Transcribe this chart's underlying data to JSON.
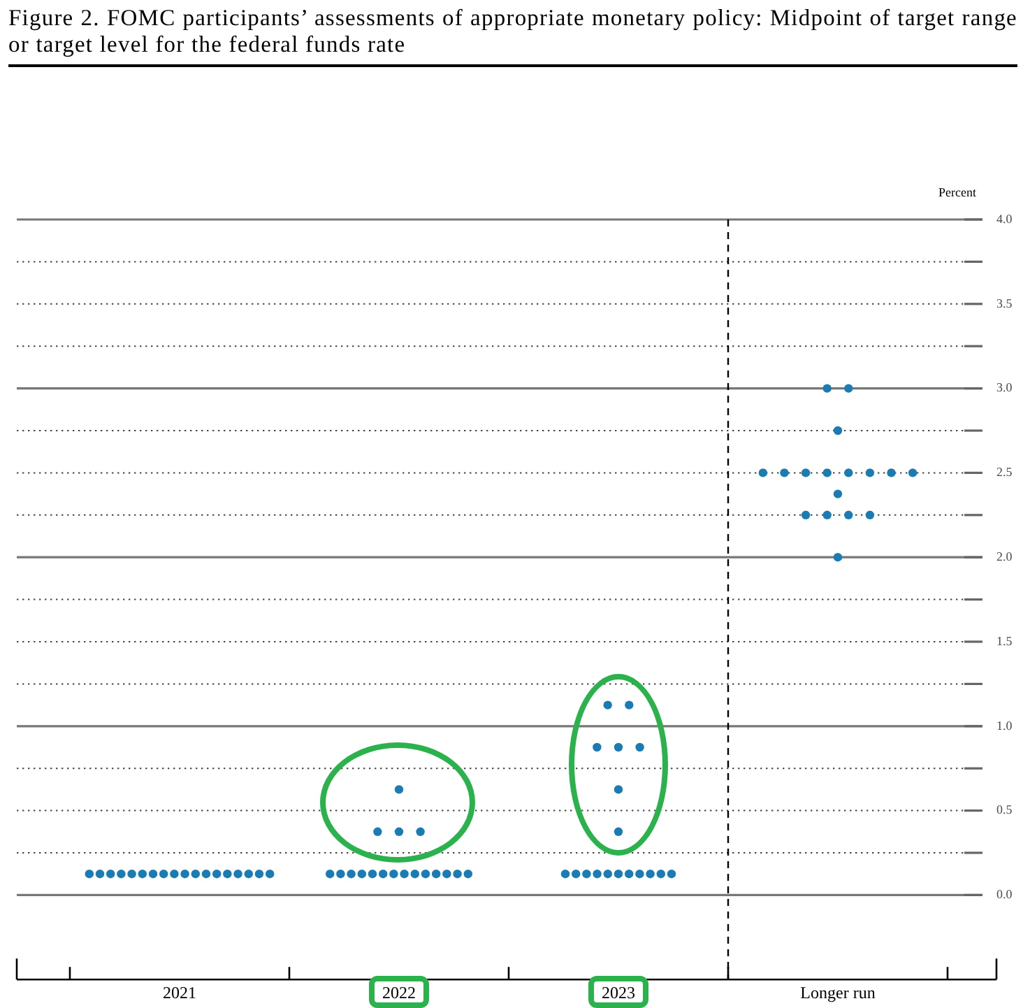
{
  "chart_data": {
    "type": "scatter",
    "title": "Figure 2. FOMC participants’ assessments of appropriate monetary policy: Midpoint of target range or target level for the federal funds rate",
    "ylabel": "Percent",
    "categories": [
      "2021",
      "2022",
      "2023",
      "Longer run"
    ],
    "series": [
      {
        "color": "#1b7bb3",
        "values": [
          0.125,
          0.125,
          0.125,
          2
        ]
      },
      {
        "color": "#1b7bb3",
        "values": [
          0.125,
          0.125,
          0.125,
          2.25
        ]
      },
      {
        "color": "#1b7bb3",
        "values": [
          0.125,
          0.125,
          0.125,
          2.25
        ]
      },
      {
        "color": "#1b7bb3",
        "values": [
          0.125,
          0.125,
          0.125,
          2.25
        ]
      },
      {
        "color": "#1b7bb3",
        "values": [
          0.125,
          0.125,
          0.125,
          2.25
        ]
      },
      {
        "color": "#1b7bb3",
        "values": [
          0.125,
          0.125,
          0.125,
          2.375
        ]
      },
      {
        "color": "#1b7bb3",
        "values": [
          0.125,
          0.125,
          0.125,
          2.5
        ]
      },
      {
        "color": "#1b7bb3",
        "values": [
          0.125,
          0.125,
          0.125,
          2.5
        ]
      },
      {
        "color": "#1b7bb3",
        "values": [
          0.125,
          0.125,
          0.125,
          2.5
        ]
      },
      {
        "color": "#1b7bb3",
        "values": [
          0.125,
          0.125,
          0.125,
          2.5
        ]
      },
      {
        "color": "#1b7bb3",
        "values": [
          0.125,
          0.125,
          0.125,
          2.5
        ]
      },
      {
        "color": "#1b7bb3",
        "values": [
          0.125,
          0.125,
          0.375,
          2.5
        ]
      },
      {
        "color": "#1b7bb3",
        "values": [
          0.125,
          0.125,
          0.625,
          2.5
        ]
      },
      {
        "color": "#1b7bb3",
        "values": [
          0.125,
          0.125,
          0.875,
          2.5
        ]
      },
      {
        "color": "#1b7bb3",
        "values": [
          0.125,
          0.375,
          0.875,
          2.75
        ]
      },
      {
        "color": "#1b7bb3",
        "values": [
          0.125,
          0.375,
          0.875,
          3
        ]
      },
      {
        "color": "#1b7bb3",
        "values": [
          0.125,
          0.375,
          1.125,
          3
        ]
      },
      {
        "color": "#1b7bb3",
        "values": [
          0.125,
          0.625,
          1.125,
          null
        ]
      }
    ],
    "ylim": [
      -0.5,
      4
    ],
    "yticks": [
      {
        "value": 0,
        "label": "0.0"
      },
      {
        "value": 0.25,
        "label": null
      },
      0.5,
      {
        "value": 0.75,
        "label": null
      },
      {
        "value": 1,
        "label": "1.0"
      },
      {
        "value": 1.25,
        "label": null
      },
      1.5,
      {
        "value": 1.75,
        "label": null
      },
      {
        "value": 2,
        "label": "2.0"
      },
      {
        "value": 2.25,
        "label": null
      },
      2.5,
      {
        "value": 2.75,
        "label": null
      },
      {
        "value": 3,
        "label": "3.0"
      },
      {
        "value": 3.25,
        "label": null
      },
      3.5,
      {
        "value": 3.75,
        "label": null
      },
      {
        "value": 4,
        "label": "4.0"
      }
    ],
    "grid": "y",
    "marker": "circle",
    "ref_lines": [
      {
        "axis": "x",
        "value": "Longer run",
        "line_style": "dashed"
      }
    ]
  }
}
